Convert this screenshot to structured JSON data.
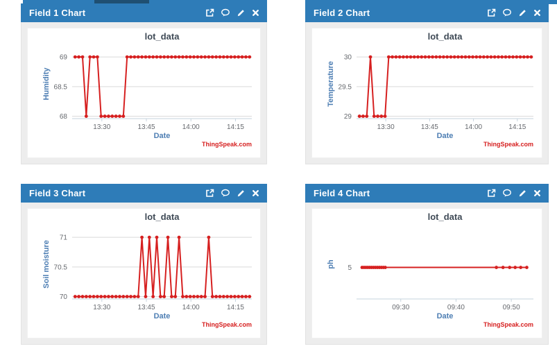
{
  "topbar": {
    "strip_color": "#2e7cb8",
    "dark_segment_color": "#1f4f72"
  },
  "panels": [
    {
      "title": "Field 1 Chart",
      "header_icons": [
        "external-link",
        "comment",
        "edit",
        "close"
      ]
    },
    {
      "title": "Field 2 Chart",
      "header_icons": [
        "external-link",
        "comment",
        "edit",
        "close"
      ]
    },
    {
      "title": "Field 3 Chart",
      "header_icons": [
        "external-link",
        "comment",
        "edit",
        "close"
      ]
    },
    {
      "title": "Field 4 Chart",
      "header_icons": [
        "external-link",
        "comment",
        "edit",
        "close"
      ]
    }
  ],
  "theme": {
    "header_blue": "#2e7cb8",
    "series_red": "#d62020",
    "axis_title_blue": "#4d7eb3",
    "tick_gray": "#66696e",
    "grid_gray": "#d9d9d9",
    "axisline_gray": "#c6d3de",
    "panel_body_gray": "#ededed"
  },
  "chart_data": [
    {
      "type": "line",
      "title": "lot_data",
      "xlabel": "Date",
      "ylabel": "Humidity",
      "watermark": "ThingSpeak.com",
      "line_color": "#d62020",
      "grid": true,
      "ylim": [
        67.96,
        69.13
      ],
      "yticks": [
        {
          "v": 68,
          "label": "68"
        },
        {
          "v": 68.5,
          "label": "68.5"
        },
        {
          "v": 69,
          "label": "69"
        }
      ],
      "xlim": [
        0,
        60.5
      ],
      "xticks": [
        {
          "x": 10,
          "label": "13:30"
        },
        {
          "x": 25,
          "label": "13:45"
        },
        {
          "x": 40,
          "label": "14:00"
        },
        {
          "x": 55,
          "label": "14:15"
        }
      ],
      "x_start": 1,
      "x_step": 1.25,
      "values": [
        69,
        69,
        69,
        68,
        69,
        69,
        69,
        68,
        68,
        68,
        68,
        68,
        68,
        68,
        69,
        69,
        69,
        69,
        69,
        69,
        69,
        69,
        69,
        69,
        69,
        69,
        69,
        69,
        69,
        69,
        69,
        69,
        69,
        69,
        69,
        69,
        69,
        69,
        69,
        69,
        69,
        69,
        69,
        69,
        69,
        69,
        69,
        69
      ]
    },
    {
      "type": "line",
      "title": "lot_data",
      "xlabel": "Date",
      "ylabel": "Temperature",
      "watermark": "ThingSpeak.com",
      "line_color": "#d62020",
      "grid": true,
      "ylim": [
        28.96,
        30.13
      ],
      "yticks": [
        {
          "v": 29,
          "label": "29"
        },
        {
          "v": 29.5,
          "label": "29.5"
        },
        {
          "v": 30,
          "label": "30"
        }
      ],
      "xlim": [
        0,
        60.5
      ],
      "xticks": [
        {
          "x": 10,
          "label": "13:30"
        },
        {
          "x": 25,
          "label": "13:45"
        },
        {
          "x": 40,
          "label": "14:00"
        },
        {
          "x": 55,
          "label": "14:15"
        }
      ],
      "x_start": 1,
      "x_step": 1.25,
      "values": [
        29,
        29,
        29,
        30,
        29,
        29,
        29,
        29,
        30,
        30,
        30,
        30,
        30,
        30,
        30,
        30,
        30,
        30,
        30,
        30,
        30,
        30,
        30,
        30,
        30,
        30,
        30,
        30,
        30,
        30,
        30,
        30,
        30,
        30,
        30,
        30,
        30,
        30,
        30,
        30,
        30,
        30,
        30,
        30,
        30,
        30,
        30,
        30
      ]
    },
    {
      "type": "line",
      "title": "lot_data",
      "xlabel": "Date",
      "ylabel": "Soil moisture",
      "watermark": "ThingSpeak.com",
      "line_color": "#d62020",
      "grid": true,
      "ylim": [
        69.96,
        71.13
      ],
      "yticks": [
        {
          "v": 70,
          "label": "70"
        },
        {
          "v": 70.5,
          "label": "70.5"
        },
        {
          "v": 71,
          "label": "71"
        }
      ],
      "xlim": [
        0,
        60.5
      ],
      "xticks": [
        {
          "x": 10,
          "label": "13:30"
        },
        {
          "x": 25,
          "label": "13:45"
        },
        {
          "x": 40,
          "label": "14:00"
        },
        {
          "x": 55,
          "label": "14:15"
        }
      ],
      "x_start": 1,
      "x_step": 1.25,
      "values": [
        70,
        70,
        70,
        70,
        70,
        70,
        70,
        70,
        70,
        70,
        70,
        70,
        70,
        70,
        70,
        70,
        70,
        70,
        71,
        70,
        71,
        70,
        71,
        70,
        70,
        71,
        70,
        70,
        71,
        70,
        70,
        70,
        70,
        70,
        70,
        70,
        71,
        70,
        70,
        70,
        70,
        70,
        70,
        70,
        70,
        70,
        70,
        70
      ]
    },
    {
      "type": "line",
      "title": "lot_data",
      "xlabel": "Date",
      "ylabel": "ph",
      "watermark": "ThingSpeak.com",
      "line_color": "#d62020",
      "grid": false,
      "ylim": [
        4.0,
        6.2
      ],
      "yticks": [
        {
          "v": 5,
          "label": "5"
        }
      ],
      "xlim": [
        0,
        32
      ],
      "xticks": [
        {
          "x": 8,
          "label": "09:30"
        },
        {
          "x": 18,
          "label": "09:40"
        },
        {
          "x": 28,
          "label": "09:50"
        }
      ],
      "x": [
        1.0,
        1.35,
        1.7,
        2.05,
        2.4,
        2.75,
        3.1,
        3.45,
        3.8,
        4.15,
        4.5,
        4.85,
        5.2,
        25.3,
        26.5,
        27.7,
        28.7,
        29.7,
        30.8
      ],
      "values": [
        5,
        5,
        5,
        5,
        5,
        5,
        5,
        5,
        5,
        5,
        5,
        5,
        5,
        5,
        5,
        5,
        5,
        5,
        5
      ]
    }
  ]
}
